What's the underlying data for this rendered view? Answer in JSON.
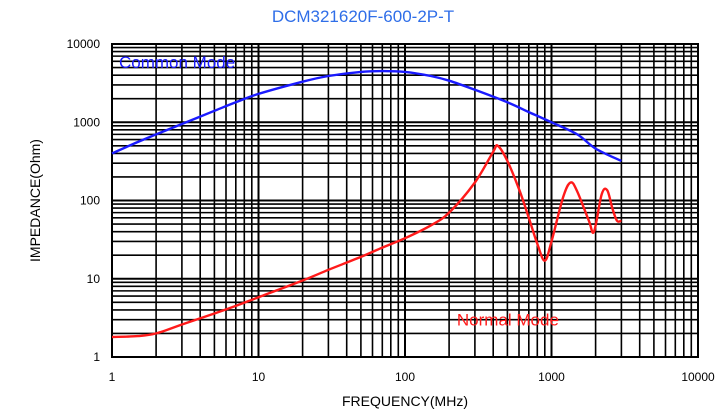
{
  "chart_data": {
    "type": "line",
    "title": "DCM321620F-600-2P-T",
    "xlabel": "FREQUENCY(MHz)",
    "ylabel": "IMPEDANCE(Ohm)",
    "x_scale": "log",
    "y_scale": "log",
    "xlim": [
      1,
      10000
    ],
    "ylim": [
      1,
      10000
    ],
    "x_ticks": [
      "1",
      "10",
      "100",
      "1000",
      "10000"
    ],
    "y_ticks": [
      "1",
      "10",
      "100",
      "1000",
      "10000"
    ],
    "grid": true,
    "series": [
      {
        "name": "Common Mode",
        "color": "#1a1aff",
        "x": [
          1,
          1.5,
          2,
          3,
          5,
          7,
          10,
          20,
          30,
          50,
          70,
          100,
          150,
          200,
          300,
          500,
          700,
          1000,
          1500,
          2000,
          3000
        ],
        "y": [
          400,
          560,
          700,
          950,
          1400,
          1800,
          2300,
          3300,
          3900,
          4400,
          4500,
          4400,
          3900,
          3400,
          2600,
          1800,
          1350,
          1000,
          700,
          460,
          320
        ]
      },
      {
        "name": "Normal Mode",
        "color": "#ff1a1a",
        "x": [
          1,
          1.5,
          2,
          3,
          5,
          7,
          10,
          20,
          30,
          50,
          70,
          100,
          150,
          200,
          300,
          400,
          430,
          500,
          600,
          700,
          800,
          900,
          1000,
          1200,
          1350,
          1500,
          1800,
          1950,
          2200,
          2400,
          2600,
          2800,
          3000
        ],
        "y": [
          1.8,
          1.85,
          2,
          2.6,
          3.6,
          4.5,
          5.8,
          9.5,
          13,
          19,
          25,
          33,
          48,
          70,
          170,
          420,
          500,
          320,
          140,
          60,
          28,
          17,
          30,
          110,
          170,
          130,
          55,
          40,
          120,
          135,
          80,
          55,
          55
        ]
      }
    ]
  },
  "annotations": {
    "common_mode": "Common Mode",
    "normal_mode": "Normal Mode"
  }
}
